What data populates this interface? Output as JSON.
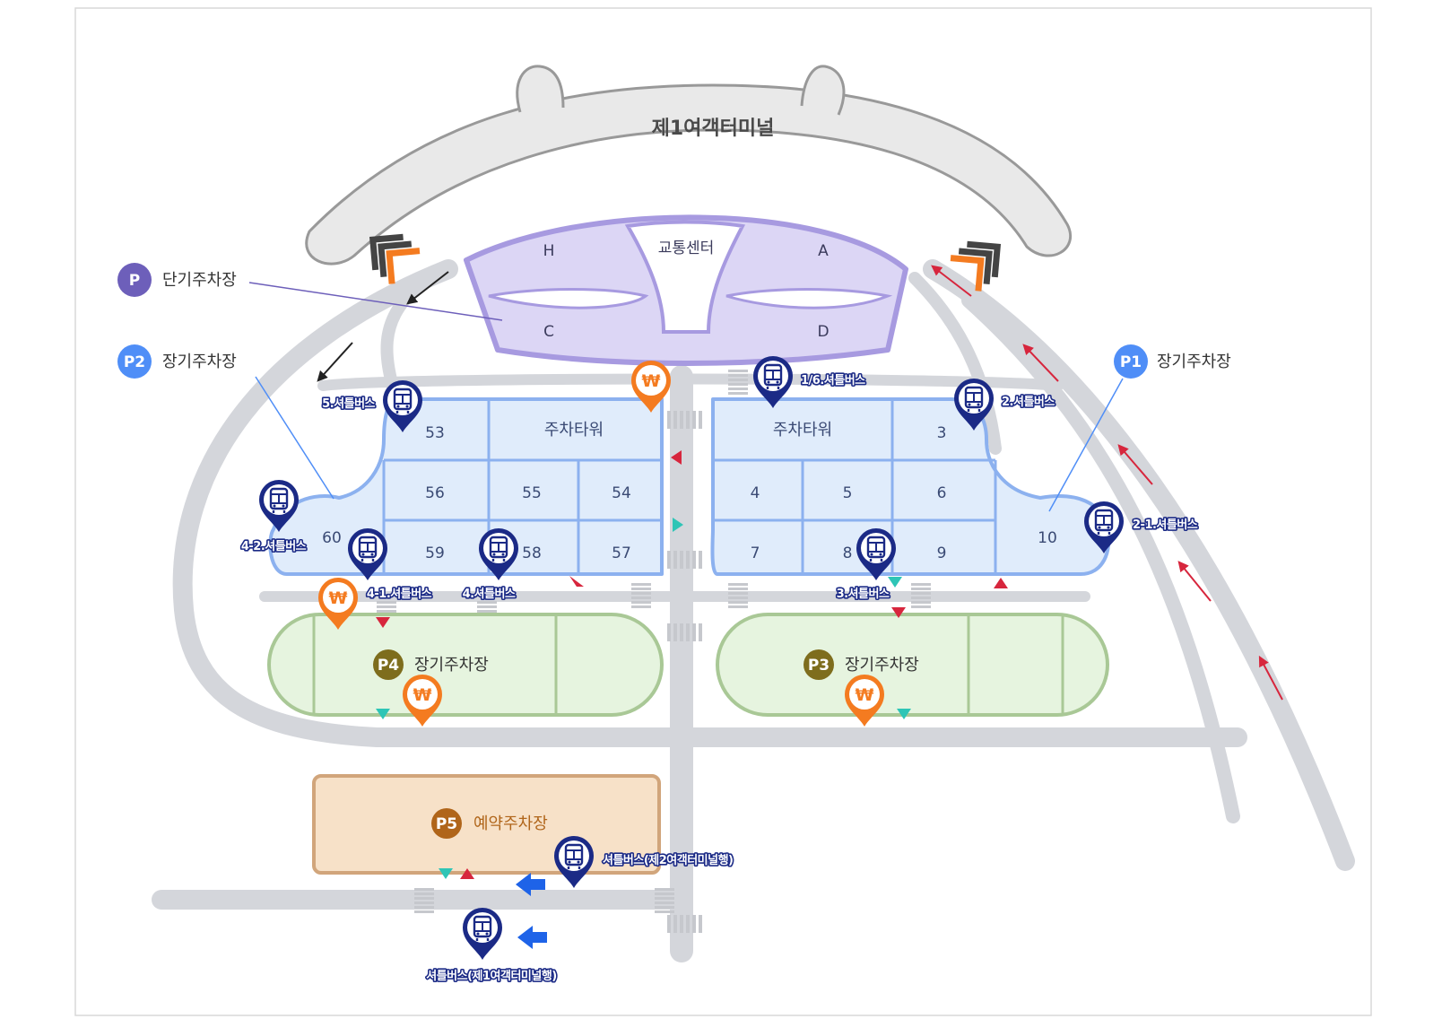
{
  "terminal": {
    "name": "제1여객터미널"
  },
  "core": {
    "name": "교통센터",
    "zones": [
      "H",
      "A",
      "C",
      "D"
    ]
  },
  "towers": {
    "left_label": "주차타워",
    "right_label": "주차타워"
  },
  "zones": {
    "left": [
      "53",
      "56",
      "55",
      "54",
      "60",
      "59",
      "58",
      "57"
    ],
    "right": [
      "3",
      "4",
      "5",
      "6",
      "7",
      "8",
      "9",
      "10"
    ]
  },
  "legend": {
    "short_term": {
      "badge": "P",
      "label": "단기주차장"
    },
    "p2": {
      "badge": "P2",
      "label": "장기주차장"
    },
    "p1": {
      "badge": "P1",
      "label": "장기주차장"
    }
  },
  "lots": {
    "p4": {
      "badge": "P4",
      "label": "장기주차장"
    },
    "p3": {
      "badge": "P3",
      "label": "장기주차장"
    },
    "p5": {
      "badge": "P5",
      "label": "예약주차장"
    }
  },
  "shuttle_stops": {
    "s5": "5.셔틀버스",
    "s16": "1/6.셔틀버스",
    "s2": "2.셔틀버스",
    "s21": "2-1.셔틀버스",
    "s42": "4-2.셔틀버스",
    "s41": "4-1.셔틀버스",
    "s4": "4.셔틀버스",
    "s3": "3.셔틀버스",
    "to_t2": "셔틀버스(제2여객터미널행)",
    "to_t1": "셔틀버스(제1여객터미널행)"
  },
  "toll_symbol": "₩",
  "colors": {
    "road": "#d4d6db",
    "terminal": "#e7e7e7",
    "core_fill": "#dcd6f5",
    "core_stroke": "#a79ae0",
    "zone_fill": "#e0ecfb",
    "zone_stroke": "#8cb1ef",
    "lot_fill": "#e6f4df",
    "lot_stroke": "#a9c896",
    "reserve_fill": "#f7e1c8",
    "reserve_stroke": "#d1a57b",
    "short_term_badge": "#6d5fba",
    "long_term_badge": "#4f8ef7",
    "lot_badge": "#7e6d1d",
    "reserve_badge": "#b0651a",
    "shuttle_pin": "#1b2a86",
    "toll_pin": "#f47b20",
    "arrow_red": "#d7263d",
    "arrow_blue": "#1e63e8",
    "marker_teal": "#2ec5b6"
  }
}
